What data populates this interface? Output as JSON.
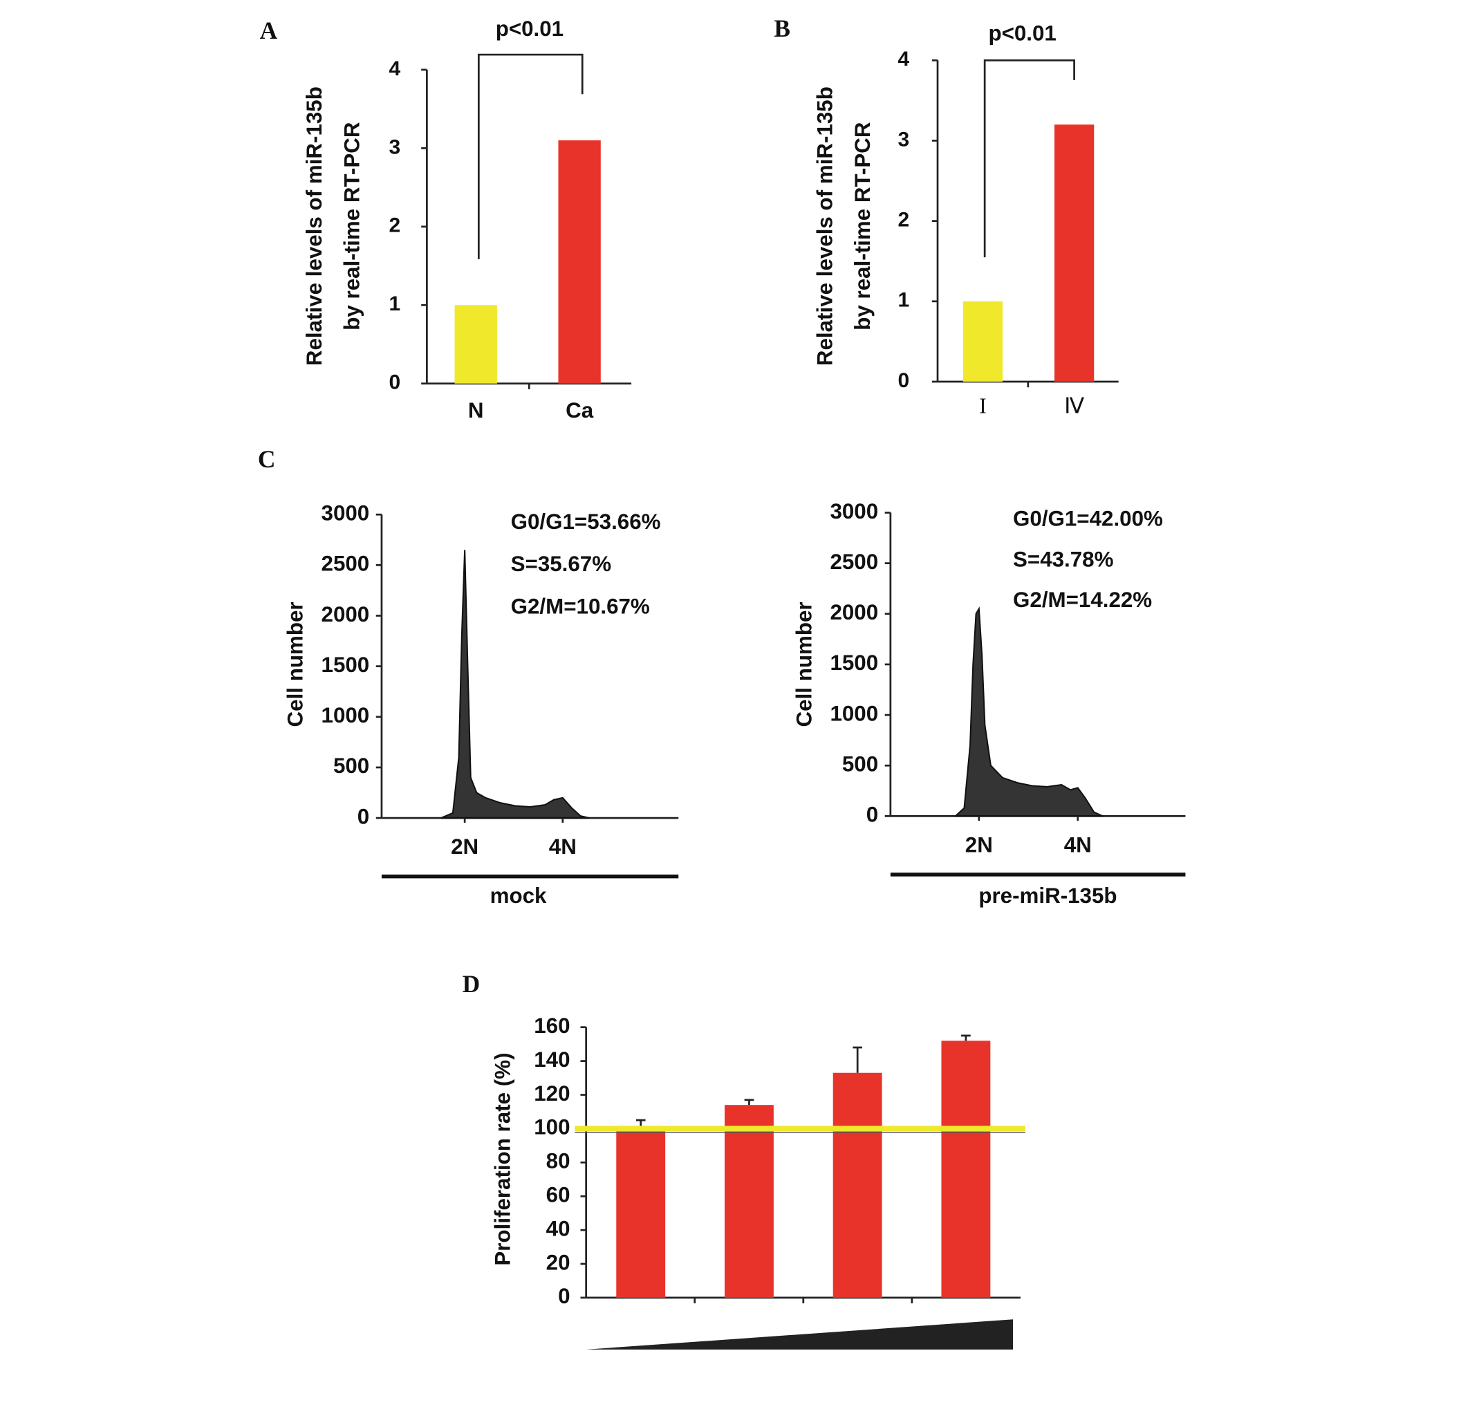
{
  "chart_data": [
    {
      "type": "bar",
      "panel": "A",
      "annotation": "p<0.01",
      "ylabel": [
        "Relative levels of miR-135b",
        "by real-time RT-PCR"
      ],
      "categories": [
        "N",
        "Ca"
      ],
      "values": [
        1.0,
        3.1
      ],
      "colors": [
        "#f0e82a",
        "#e8332a"
      ],
      "ylim": [
        0,
        4
      ],
      "yticks": [
        0,
        1,
        2,
        3,
        4
      ]
    },
    {
      "type": "bar",
      "panel": "B",
      "annotation": "p<0.01",
      "ylabel": [
        "Relative levels of miR-135b",
        "by real-time RT-PCR"
      ],
      "categories": [
        "I",
        "Ⅳ"
      ],
      "values": [
        1.0,
        3.2
      ],
      "colors": [
        "#f0e82a",
        "#e8332a"
      ],
      "ylim": [
        0,
        4
      ],
      "yticks": [
        0,
        1,
        2,
        3,
        4
      ]
    },
    {
      "type": "flow",
      "panel": "C",
      "ylabel": "Cell number",
      "xlabel": "mock",
      "annotations": [
        "G0/G1=53.66%",
        "S=35.67%",
        "G2/M=10.67%"
      ],
      "color": "#111111",
      "xlim": [
        0,
        100
      ],
      "xticks": [
        {
          "value": 28,
          "label": "2N"
        },
        {
          "value": 61,
          "label": "4N"
        }
      ],
      "ylim": [
        0,
        3000
      ],
      "yticks": [
        0,
        500,
        1000,
        1500,
        2000,
        2500,
        3000
      ],
      "x": [
        20,
        24,
        26,
        27,
        28,
        29,
        30,
        32,
        35,
        40,
        45,
        50,
        55,
        58,
        61,
        64,
        67,
        70
      ],
      "values": [
        0,
        50,
        600,
        1800,
        2650,
        1500,
        400,
        250,
        200,
        150,
        120,
        110,
        130,
        180,
        200,
        100,
        20,
        0
      ]
    },
    {
      "type": "flow",
      "ylabel": "Cell number",
      "xlabel": "pre-miR-135b",
      "annotations": [
        "G0/G1=42.00%",
        "S=43.78%",
        "G2/M=14.22%"
      ],
      "color": "#111111",
      "xlim": [
        0,
        100
      ],
      "xticks": [
        {
          "value": 30,
          "label": "2N"
        },
        {
          "value": 63.5,
          "label": "4N"
        }
      ],
      "ylim": [
        0,
        3000
      ],
      "yticks": [
        0,
        500,
        1000,
        1500,
        2000,
        2500,
        3000
      ],
      "x": [
        22,
        25,
        27,
        28,
        29,
        30,
        31,
        32,
        34,
        38,
        43,
        48,
        53,
        58,
        61,
        63.5,
        66,
        69,
        72
      ],
      "values": [
        0,
        80,
        700,
        1500,
        2000,
        2050,
        1600,
        900,
        500,
        380,
        330,
        300,
        290,
        310,
        260,
        280,
        180,
        40,
        0
      ]
    },
    {
      "type": "errorbar",
      "panel": "D",
      "ylabel": "Proliferation rate (%)",
      "categories": [
        null,
        null,
        null,
        null
      ],
      "values": [
        100,
        114,
        133,
        152
      ],
      "errors": [
        5,
        3,
        15,
        3
      ],
      "color": "#e8332a",
      "hline": 100,
      "hline_color": "#f0e82a",
      "ylim": [
        0,
        160
      ],
      "yticks": [
        0,
        20,
        40,
        60,
        80,
        100,
        120,
        140,
        160
      ]
    }
  ]
}
